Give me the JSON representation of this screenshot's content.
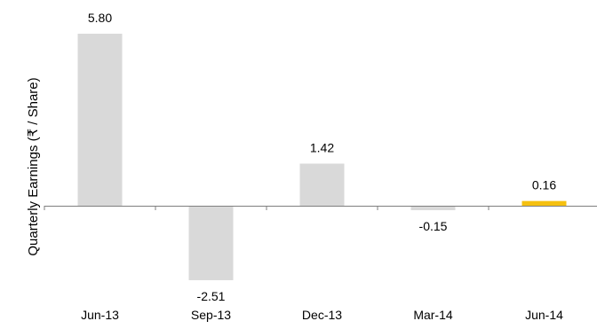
{
  "chart_data": {
    "type": "bar",
    "title": "",
    "xlabel": "",
    "ylabel": "Quarterly Earnings (₹ / Share)",
    "categories": [
      "Jun-13",
      "Sep-13",
      "Dec-13",
      "Mar-14",
      "Jun-14"
    ],
    "values": [
      5.8,
      -2.51,
      1.42,
      -0.15,
      0.16
    ],
    "data_labels": [
      "5.80",
      "-2.51",
      "1.42",
      "-0.15",
      "0.16"
    ],
    "bar_colors": [
      "#d9d9d9",
      "#d9d9d9",
      "#d9d9d9",
      "#d9d9d9",
      "#f5c010"
    ],
    "axis_color": "#7f7f7f",
    "ylim": [
      -2.51,
      5.8
    ],
    "grid": false,
    "legend": "none"
  }
}
